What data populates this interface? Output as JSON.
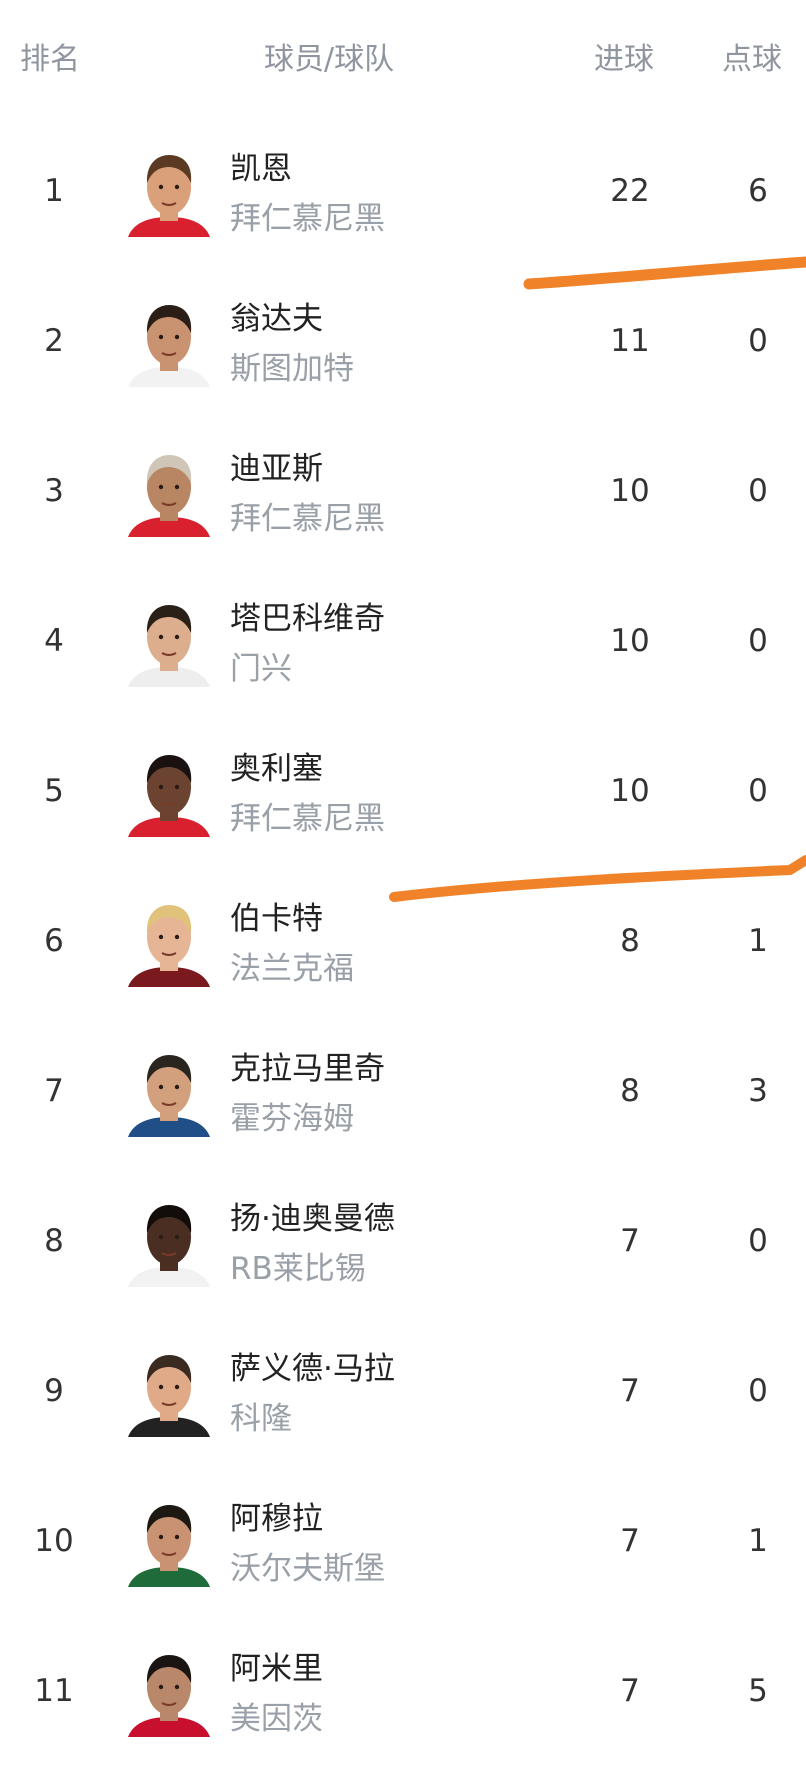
{
  "header": {
    "rank": "排名",
    "player_team": "球员/球队",
    "goals": "进球",
    "penalties": "点球"
  },
  "accent_color": "#f0832a",
  "rows": [
    {
      "rank": "1",
      "name": "凯恩",
      "team": "拜仁慕尼黑",
      "goals": "22",
      "penalties": "6",
      "shirt": "#d9202f",
      "skin": "#d9a07a",
      "hair": "#5a3a22"
    },
    {
      "rank": "2",
      "name": "翁达夫",
      "team": "斯图加特",
      "goals": "11",
      "penalties": "0",
      "shirt": "#f2f2f2",
      "skin": "#c99270",
      "hair": "#2b1e16"
    },
    {
      "rank": "3",
      "name": "迪亚斯",
      "team": "拜仁慕尼黑",
      "goals": "10",
      "penalties": "0",
      "shirt": "#d9202f",
      "skin": "#b98663",
      "hair": "#cfc6b8"
    },
    {
      "rank": "4",
      "name": "塔巴科维奇",
      "team": "门兴",
      "goals": "10",
      "penalties": "0",
      "shirt": "#eeeeee",
      "skin": "#dcae8e",
      "hair": "#2a2018"
    },
    {
      "rank": "5",
      "name": "奥利塞",
      "team": "拜仁慕尼黑",
      "goals": "10",
      "penalties": "0",
      "shirt": "#d9202f",
      "skin": "#6b4330",
      "hair": "#1a1210"
    },
    {
      "rank": "6",
      "name": "伯卡特",
      "team": "法兰克福",
      "goals": "8",
      "penalties": "1",
      "shirt": "#7a1a1e",
      "skin": "#e6b595",
      "hair": "#e1c27a"
    },
    {
      "rank": "7",
      "name": "克拉马里奇",
      "team": "霍芬海姆",
      "goals": "8",
      "penalties": "3",
      "shirt": "#1f4f86",
      "skin": "#d3a07e",
      "hair": "#2b2520"
    },
    {
      "rank": "8",
      "name": "扬·迪奥曼德",
      "team": "RB莱比锡",
      "goals": "7",
      "penalties": "0",
      "shirt": "#f2f2f2",
      "skin": "#4a2e22",
      "hair": "#120c0a"
    },
    {
      "rank": "9",
      "name": "萨义德·马拉",
      "team": "科隆",
      "goals": "7",
      "penalties": "0",
      "shirt": "#222222",
      "skin": "#e0aa88",
      "hair": "#3a2a20"
    },
    {
      "rank": "10",
      "name": "阿穆拉",
      "team": "沃尔夫斯堡",
      "goals": "7",
      "penalties": "1",
      "shirt": "#1f6b3a",
      "skin": "#c99272",
      "hair": "#1e1812"
    },
    {
      "rank": "11",
      "name": "阿米里",
      "team": "美因茨",
      "goals": "7",
      "penalties": "5",
      "shirt": "#c8102e",
      "skin": "#b9876a",
      "hair": "#1a1412"
    }
  ]
}
